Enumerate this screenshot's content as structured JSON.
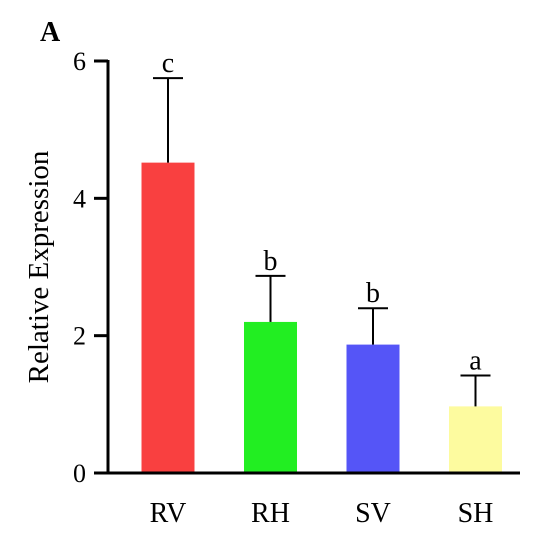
{
  "panel_label": "A",
  "chart_data": {
    "type": "bar",
    "title": "",
    "xlabel": "",
    "ylabel": "Relative Expression",
    "ylim": [
      0,
      6
    ],
    "yticks": [
      0,
      2,
      4,
      6
    ],
    "categories": [
      "RV",
      "RH",
      "SV",
      "SH"
    ],
    "values": [
      4.52,
      2.2,
      1.87,
      0.97
    ],
    "errors": [
      1.23,
      0.67,
      0.53,
      0.45
    ],
    "significance": [
      "c",
      "b",
      "b",
      "a"
    ],
    "colors": [
      "#f94040",
      "#22ee22",
      "#5555f7",
      "#fdfb9f"
    ],
    "grid": false,
    "legend": "none"
  }
}
